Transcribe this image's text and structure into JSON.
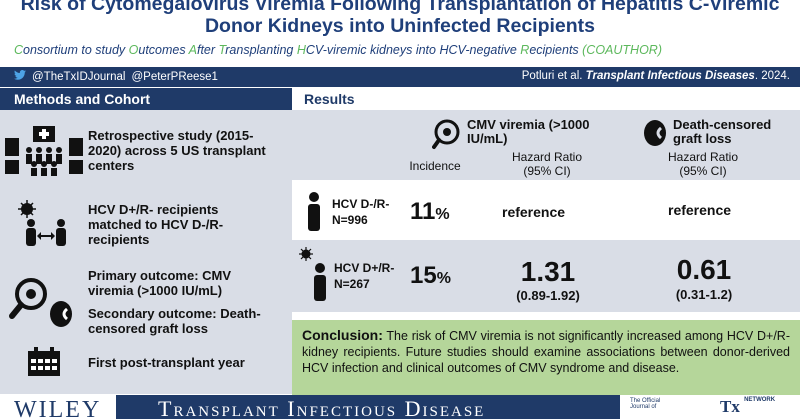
{
  "header": {
    "title": "Risk of Cytomegalovirus Viremia Following Transplantation of Hepatitis C-Viremic Donor Kidneys into Uninfected Recipients",
    "subtitle_parts": [
      {
        "text": "C",
        "hl": true
      },
      {
        "text": "onsortium to study ",
        "hl": false
      },
      {
        "text": "O",
        "hl": true
      },
      {
        "text": "utcomes ",
        "hl": false
      },
      {
        "text": "A",
        "hl": true
      },
      {
        "text": "fter ",
        "hl": false
      },
      {
        "text": "T",
        "hl": true
      },
      {
        "text": "ransplanting ",
        "hl": false
      },
      {
        "text": "H",
        "hl": true
      },
      {
        "text": "CV-viremic kidneys into HCV-negative ",
        "hl": false
      },
      {
        "text": "R",
        "hl": true
      },
      {
        "text": "ecipients ",
        "hl": false
      },
      {
        "text": "(COAUTHOR)",
        "hl": true
      }
    ]
  },
  "bar": {
    "handle1": "@TheTxIDJournal",
    "handle2": "@PeterPReese1",
    "cite_authors": "Potluri et al.",
    "cite_journal": "Transplant Infectious Diseases",
    "cite_year": ". 2024."
  },
  "left": {
    "heading": "Methods and Cohort",
    "items": [
      {
        "text": "Retrospective study (2015-2020) across 5 US transplant centers"
      },
      {
        "text": "HCV D+/R- recipients matched to HCV D-/R- recipients"
      },
      {
        "text": "Primary outcome: CMV viremia (>1000 IU/mL)"
      },
      {
        "text": "Secondary outcome: Death-censored graft loss"
      },
      {
        "text": "First post-transplant year"
      }
    ]
  },
  "results": {
    "heading": "Results",
    "cmv_title": "CMV viremia (>1000 IU/mL)",
    "graft_title": "Death-censored graft loss",
    "incidence_label": "Incidence",
    "hr_label": "Hazard Ratio (95% CI)",
    "hr_label2": "Hazard Ratio (95% CI)",
    "row1": {
      "group": "HCV D-/R-",
      "n": "N=996",
      "incidence": "11",
      "pct": "%",
      "cmv": "reference",
      "graft": "reference"
    },
    "row2": {
      "group": "HCV D+/R-",
      "n": "N=267",
      "incidence": "15",
      "pct": "%",
      "cmv_hr": "1.31",
      "cmv_ci": "(0.89-1.92)",
      "graft_hr": "0.61",
      "graft_ci": "(0.31-1.2)"
    }
  },
  "conclusion": {
    "label": "Conclusion:",
    "text": " The risk of CMV viremia is not significantly increased among HCV D+/R- kidney recipients. Future studies should examine associations between donor-derived HCV infection and clinical outcomes of CMV syndrome and disease."
  },
  "footer": {
    "publisher": "WILEY",
    "journal": "Transplant Infectious Disease",
    "logo_small": "The Official Journal of",
    "logo_tx": "Tx",
    "logo_network": "NETWORK"
  },
  "colors": {
    "navy": "#1f3a68",
    "title_blue": "#1f3f7a",
    "green": "#5cb85c",
    "panel": "#d9dde6",
    "conclusion_bg": "#b5d69a"
  }
}
